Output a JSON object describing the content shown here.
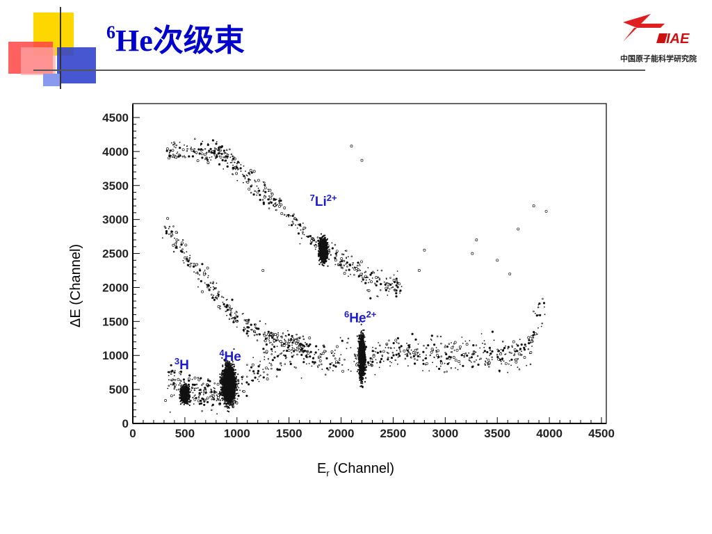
{
  "slide": {
    "title_sup": "6",
    "title_main": "He次级束",
    "logo_text": "中国原子能科学研究院",
    "logo_mark": "IAE"
  },
  "colors": {
    "title": "#0000cc",
    "accent_yellow": "#ffd700",
    "accent_blue": "#3344cc",
    "accent_red": "#ff3333",
    "annotation": "#1a1ad0"
  },
  "chart_data": {
    "type": "scatter",
    "title": "",
    "xlabel": "E",
    "xlabel_sub": "r",
    "xlabel_suffix": " (Channel)",
    "ylabel": "ΔE (Channel)",
    "xlim": [
      0,
      4500
    ],
    "ylim": [
      0,
      4500
    ],
    "xticks": [
      "0",
      "500",
      "1000",
      "1500",
      "2000",
      "2500",
      "3000",
      "3500",
      "4000",
      "4500"
    ],
    "yticks": [
      "0",
      "500",
      "1000",
      "1500",
      "2000",
      "2500",
      "3000",
      "3500",
      "4000",
      "4500"
    ],
    "grid": false,
    "annotations": [
      {
        "sup": "3",
        "text": "H",
        "sup2": "",
        "x": 400,
        "y": 800
      },
      {
        "sup": "4",
        "text": "He",
        "sup2": "",
        "x": 830,
        "y": 920
      },
      {
        "sup": "6",
        "text": "He",
        "sup2": "2+",
        "x": 2030,
        "y": 1490
      },
      {
        "sup": "7",
        "text": "Li",
        "sup2": "2+",
        "x": 1700,
        "y": 3200
      }
    ],
    "series": [
      {
        "type": "band",
        "x": [
          340,
          600,
          800,
          1000,
          1400,
          1800,
          2200,
          2600,
          3000,
          3400,
          3800
        ],
        "y": [
          620,
          480,
          420,
          520,
          1000,
          1000,
          950,
          1050,
          1000,
          1000,
          1050
        ],
        "spread": 230
      },
      {
        "type": "band",
        "x": [
          310,
          500,
          700,
          900,
          1100,
          1300,
          1500,
          1700
        ],
        "y": [
          2900,
          2500,
          2100,
          1700,
          1400,
          1300,
          1200,
          1100
        ],
        "spread": 130
      },
      {
        "type": "band",
        "x": [
          340,
          700,
          900,
          1100,
          1400,
          1700,
          2000,
          2300,
          2560
        ],
        "y": [
          4000,
          4000,
          3950,
          3600,
          3200,
          2700,
          2400,
          2100,
          2000
        ],
        "spread": 150
      },
      {
        "type": "band",
        "x": [
          3800,
          3850,
          3900,
          3950
        ],
        "y": [
          1050,
          1300,
          1550,
          1750
        ],
        "spread": 120
      },
      {
        "type": "cluster",
        "x": 500,
        "y": 430,
        "sx": 30,
        "sy": 90
      },
      {
        "type": "cluster",
        "x": 920,
        "y": 580,
        "sx": 45,
        "sy": 200
      },
      {
        "type": "cluster",
        "x": 2200,
        "y": 980,
        "sx": 22,
        "sy": 240
      },
      {
        "type": "cluster",
        "x": 1830,
        "y": 2550,
        "sx": 28,
        "sy": 130
      },
      {
        "type": "points",
        "x": [
          2100,
          2200,
          3850,
          3970,
          3700,
          3300,
          3260,
          1250,
          2800,
          3500,
          2750,
          3620
        ],
        "y": [
          4080,
          3870,
          3200,
          3120,
          2860,
          2700,
          2500,
          2250,
          2550,
          2400,
          2250,
          2200
        ]
      }
    ]
  }
}
